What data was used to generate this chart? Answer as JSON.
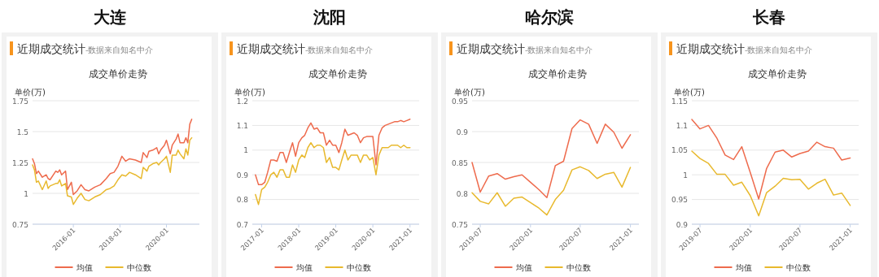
{
  "chart_data": [
    {
      "type": "line",
      "title": "大连",
      "subtitle": "成交单价走势",
      "annotations": [
        "近期成交统计",
        "-数据来自知名中介"
      ],
      "ylabel": "单价(万)",
      "xlim": [
        "2014-04",
        "2021-06"
      ],
      "xticks": [
        "2016-01",
        "2018-01",
        "2020-01"
      ],
      "ylim": [
        0.75,
        1.75
      ],
      "yticks": [
        0.75,
        1,
        1.25,
        1.5,
        1.75
      ],
      "grid": "y",
      "legend": "bottom",
      "x": [
        "2014-04",
        "2014-05",
        "2014-06",
        "2014-07",
        "2014-09",
        "2014-11",
        "2014-12",
        "2015-01",
        "2015-04",
        "2015-05",
        "2015-06",
        "2015-07",
        "2015-09",
        "2015-10",
        "2015-12",
        "2016-01",
        "2016-03",
        "2016-05",
        "2016-07",
        "2016-09",
        "2016-12",
        "2017-03",
        "2017-06",
        "2017-08",
        "2017-10",
        "2017-12",
        "2018-02",
        "2018-04",
        "2018-06",
        "2018-09",
        "2018-12",
        "2019-01",
        "2019-03",
        "2019-04",
        "2019-06",
        "2019-08",
        "2019-09",
        "2019-10",
        "2019-12",
        "2020-01",
        "2020-03",
        "2020-04",
        "2020-06",
        "2020-07",
        "2020-08",
        "2020-10",
        "2020-11",
        "2020-12",
        "2021-01",
        "2021-02"
      ],
      "series": [
        {
          "name": "均值",
          "color": "#ee6b4d",
          "values": [
            1.28,
            1.24,
            1.16,
            1.18,
            1.13,
            1.15,
            1.12,
            1.11,
            1.18,
            1.17,
            1.19,
            1.15,
            1.18,
            1.03,
            1.09,
            0.99,
            1.02,
            1.07,
            1.03,
            1.02,
            1.05,
            1.07,
            1.12,
            1.16,
            1.17,
            1.22,
            1.3,
            1.26,
            1.28,
            1.27,
            1.25,
            1.33,
            1.29,
            1.34,
            1.35,
            1.37,
            1.32,
            1.35,
            1.39,
            1.43,
            1.32,
            1.39,
            1.44,
            1.48,
            1.41,
            1.41,
            1.45,
            1.41,
            1.56,
            1.6
          ]
        },
        {
          "name": "中位数",
          "color": "#e8b92e",
          "values": [
            1.23,
            1.19,
            1.09,
            1.1,
            1.03,
            1.1,
            1.04,
            1.06,
            1.08,
            1.08,
            1.11,
            1.06,
            1.08,
            0.98,
            0.97,
            0.91,
            0.96,
            1.0,
            0.95,
            0.94,
            0.97,
            0.99,
            1.03,
            1.04,
            1.06,
            1.11,
            1.15,
            1.14,
            1.17,
            1.15,
            1.12,
            1.21,
            1.18,
            1.22,
            1.24,
            1.25,
            1.23,
            1.25,
            1.28,
            1.3,
            1.17,
            1.31,
            1.31,
            1.35,
            1.32,
            1.28,
            1.36,
            1.31,
            1.43,
            1.45
          ]
        }
      ]
    },
    {
      "type": "line",
      "title": "沈阳",
      "subtitle": "成交单价走势",
      "annotations": [
        "近期成交统计",
        "-数据来自知名中介"
      ],
      "ylabel": "单价(万)",
      "xlim": [
        "2016-10",
        "2021-04"
      ],
      "xticks": [
        "2017-01",
        "2018-01",
        "2019-01",
        "2020-01",
        "2021-01"
      ],
      "ylim": [
        0.7,
        1.2
      ],
      "yticks": [
        0.7,
        0.8,
        0.9,
        1,
        1.1,
        1.2
      ],
      "grid": "y",
      "legend": "bottom",
      "x": [
        "2016-11",
        "2016-12",
        "2017-01",
        "2017-02",
        "2017-03",
        "2017-04",
        "2017-05",
        "2017-06",
        "2017-07",
        "2017-08",
        "2017-09",
        "2017-10",
        "2017-11",
        "2017-12",
        "2018-01",
        "2018-02",
        "2018-03",
        "2018-04",
        "2018-05",
        "2018-06",
        "2018-07",
        "2018-08",
        "2018-09",
        "2018-10",
        "2018-11",
        "2018-12",
        "2019-01",
        "2019-02",
        "2019-03",
        "2019-04",
        "2019-05",
        "2019-06",
        "2019-07",
        "2019-08",
        "2019-09",
        "2019-10",
        "2019-11",
        "2019-12",
        "2020-01",
        "2020-02",
        "2020-03",
        "2020-04",
        "2020-05",
        "2020-06",
        "2020-07",
        "2020-08",
        "2020-09",
        "2020-10",
        "2020-11",
        "2020-12",
        "2021-01"
      ],
      "series": [
        {
          "name": "均值",
          "color": "#ee6b4d",
          "values": [
            0.9,
            0.86,
            0.86,
            0.87,
            0.91,
            0.96,
            0.96,
            0.955,
            0.99,
            0.99,
            0.95,
            0.99,
            1.03,
            0.975,
            1.03,
            1.05,
            1.06,
            1.09,
            1.11,
            1.085,
            1.09,
            1.07,
            1.07,
            1.02,
            1.04,
            1.02,
            1.02,
            0.99,
            1.03,
            1.085,
            1.06,
            1.065,
            1.07,
            1.06,
            1.03,
            1.05,
            1.055,
            1.055,
            1.055,
            0.94,
            1.06,
            1.09,
            1.1,
            1.105,
            1.11,
            1.115,
            1.115,
            1.12,
            1.115,
            1.12,
            1.125
          ]
        },
        {
          "name": "中位数",
          "color": "#e8b92e",
          "values": [
            0.82,
            0.78,
            0.84,
            0.85,
            0.87,
            0.9,
            0.91,
            0.89,
            0.92,
            0.92,
            0.89,
            0.89,
            0.94,
            0.91,
            0.96,
            0.98,
            0.97,
            1.01,
            1.03,
            1.01,
            1.02,
            1.02,
            1.01,
            0.95,
            0.97,
            0.93,
            0.93,
            0.92,
            0.96,
            1.0,
            0.96,
            0.98,
            0.98,
            0.98,
            0.95,
            0.98,
            0.98,
            0.96,
            0.97,
            0.9,
            0.98,
            1.01,
            1.01,
            1.01,
            1.02,
            1.02,
            1.02,
            1.01,
            1.02,
            1.01,
            1.01
          ]
        }
      ]
    },
    {
      "type": "line",
      "title": "哈尔滨",
      "subtitle": "成交单价走势",
      "annotations": [
        "近期成交统计",
        "-数据来自知名中介"
      ],
      "ylabel": "单价(万)",
      "xlim": [
        "2019-06",
        "2021-02"
      ],
      "xticks": [
        "2019-07",
        "2020-01",
        "2020-07",
        "2021-01"
      ],
      "ylim": [
        0.75,
        0.95
      ],
      "yticks": [
        0.75,
        0.8,
        0.85,
        0.9,
        0.95
      ],
      "grid": "y",
      "legend": "bottom",
      "x": [
        "2019-06",
        "2019-07",
        "2019-08",
        "2019-09",
        "2019-10",
        "2019-11",
        "2019-12",
        "2020-01",
        "2020-02",
        "2020-03",
        "2020-04",
        "2020-05",
        "2020-06",
        "2020-07",
        "2020-08",
        "2020-09",
        "2020-10",
        "2020-11",
        "2020-12",
        "2021-01"
      ],
      "series": [
        {
          "name": "均值",
          "color": "#ee6b4d",
          "values": [
            0.85,
            0.802,
            0.828,
            0.832,
            0.823,
            0.827,
            0.83,
            0.818,
            0.806,
            0.793,
            0.845,
            0.852,
            0.905,
            0.919,
            0.912,
            0.881,
            0.912,
            0.899,
            0.873,
            0.895
          ]
        },
        {
          "name": "中位数",
          "color": "#e8b92e",
          "values": [
            0.801,
            0.787,
            0.783,
            0.801,
            0.779,
            0.792,
            0.794,
            0.785,
            0.776,
            0.765,
            0.79,
            0.805,
            0.838,
            0.843,
            0.837,
            0.824,
            0.831,
            0.834,
            0.81,
            0.842
          ]
        }
      ]
    },
    {
      "type": "line",
      "title": "长春",
      "subtitle": "成交单价走势",
      "annotations": [
        "近期成交统计",
        "-数据来自知名中介"
      ],
      "ylabel": "单价(万)",
      "xlim": [
        "2019-06",
        "2021-02"
      ],
      "xticks": [
        "2019-07",
        "2020-01",
        "2020-07",
        "2021-01"
      ],
      "ylim": [
        0.9,
        1.15
      ],
      "yticks": [
        0.9,
        0.95,
        1,
        1.05,
        1.1,
        1.15
      ],
      "grid": "y",
      "legend": "bottom",
      "x": [
        "2019-06",
        "2019-07",
        "2019-08",
        "2019-09",
        "2019-10",
        "2019-11",
        "2019-12",
        "2020-01",
        "2020-02",
        "2020-03",
        "2020-04",
        "2020-05",
        "2020-06",
        "2020-07",
        "2020-08",
        "2020-09",
        "2020-10",
        "2020-11",
        "2020-12",
        "2021-01"
      ],
      "series": [
        {
          "name": "均值",
          "color": "#ee6b4d",
          "values": [
            1.112,
            1.093,
            1.1,
            1.074,
            1.04,
            1.031,
            1.057,
            1.005,
            0.951,
            1.013,
            1.046,
            1.05,
            1.036,
            1.043,
            1.048,
            1.066,
            1.057,
            1.054,
            1.03,
            1.034
          ]
        },
        {
          "name": "中位数",
          "color": "#e8b92e",
          "values": [
            1.048,
            1.033,
            1.023,
            1.001,
            1.001,
            0.979,
            0.985,
            0.958,
            0.917,
            0.964,
            0.977,
            0.993,
            0.99,
            0.991,
            0.971,
            0.983,
            0.991,
            0.959,
            0.963,
            0.938
          ]
        }
      ]
    }
  ]
}
